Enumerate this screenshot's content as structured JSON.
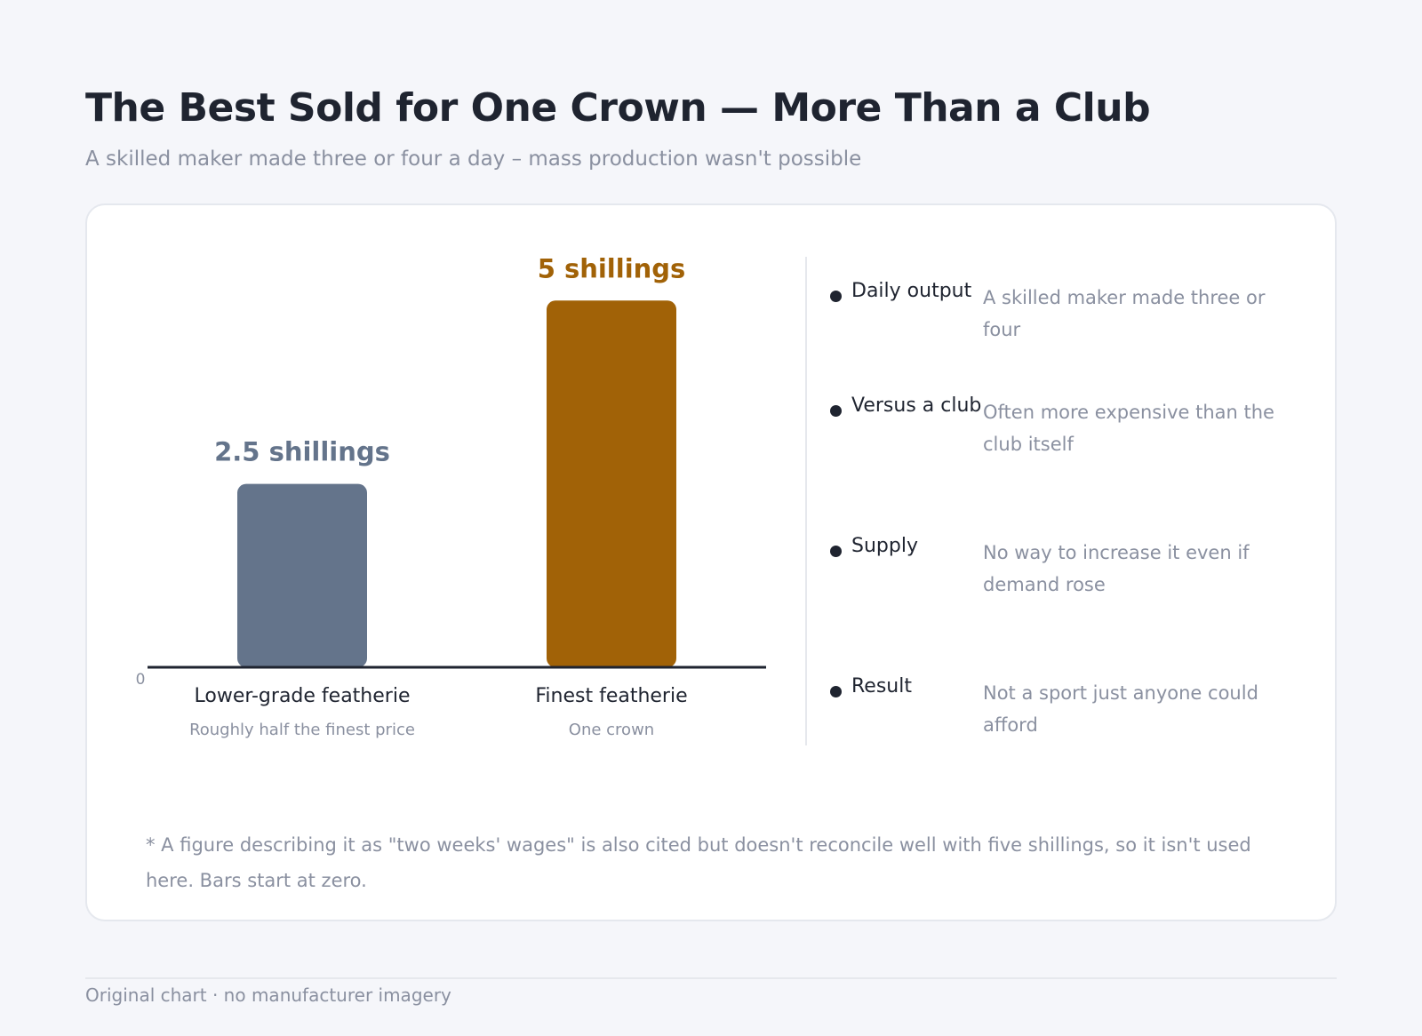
{
  "header": {
    "title": "The Best Sold for One Crown — More Than a Club",
    "subtitle": "A skilled maker made three or four a day – mass production wasn't possible"
  },
  "chart_data": {
    "type": "bar",
    "categories": [
      "Lower-grade featherie",
      "Finest featherie"
    ],
    "category_notes": [
      "Roughly half the finest price",
      "One crown"
    ],
    "values": [
      2.5,
      5
    ],
    "value_labels": [
      "2.5 shillings",
      "5 shillings"
    ],
    "unit": "shillings",
    "ylim": [
      0,
      5.5
    ],
    "baseline_label": "0",
    "colors": [
      "#64748b",
      "#a16207"
    ],
    "grid": false
  },
  "notes": [
    {
      "label": "Daily output",
      "text": "A skilled maker made three or four"
    },
    {
      "label": "Versus a club",
      "text": "Often more expensive than the club itself"
    },
    {
      "label": "Supply",
      "text": "No way to increase it even if demand rose"
    },
    {
      "label": "Result",
      "text": "Not a sport just anyone could afford"
    }
  ],
  "footnote": "* A figure describing it as \"two weeks' wages\" is also cited but doesn't reconcile well with five shillings, so it isn't used here. Bars start at zero.",
  "footer": "Original chart · no manufacturer imagery",
  "colors": {
    "background": "#f5f6fa",
    "text": "#1f2430",
    "muted": "#8a90a0"
  }
}
